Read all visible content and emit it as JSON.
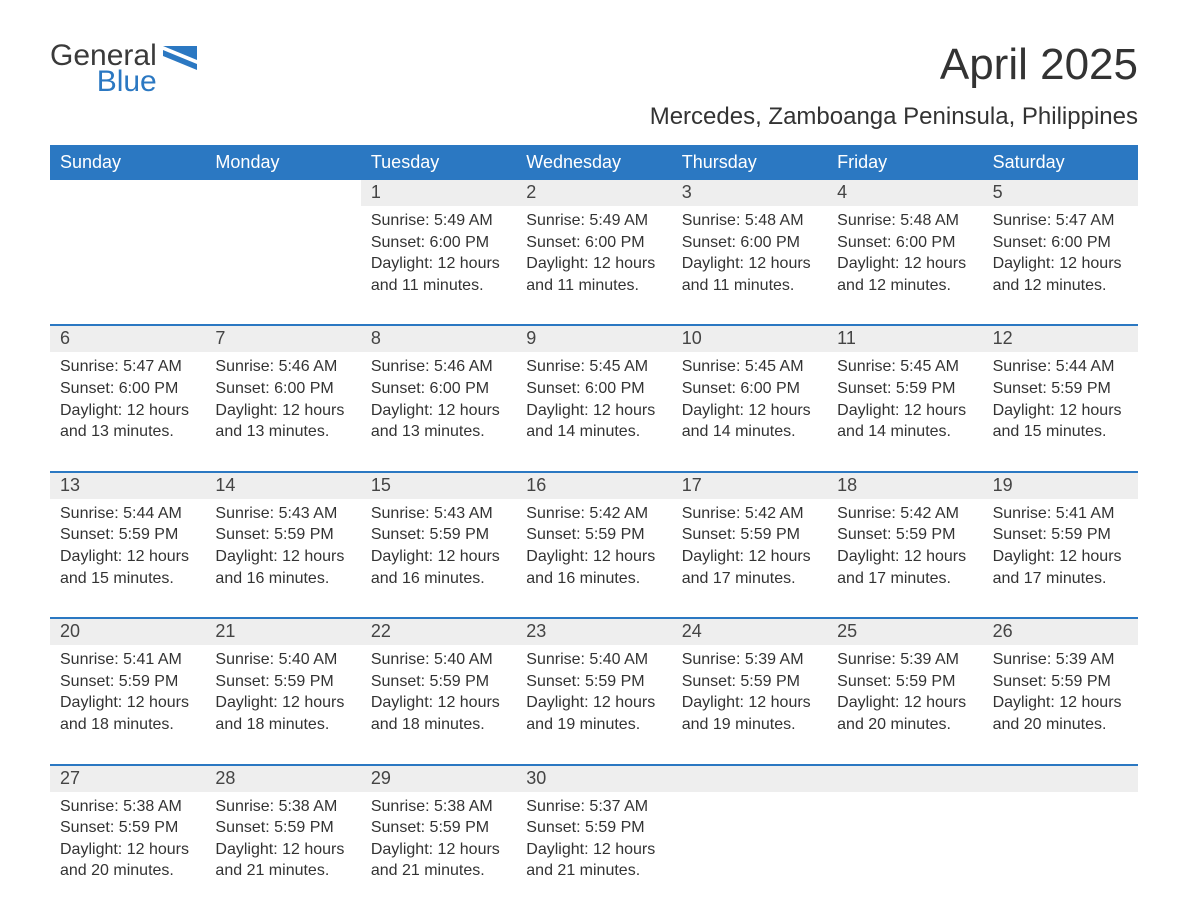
{
  "logo": {
    "line1": "General",
    "line2": "Blue",
    "flag_color": "#2b78c2"
  },
  "title": "April 2025",
  "subtitle": "Mercedes, Zamboanga Peninsula, Philippines",
  "colors": {
    "header_bg": "#2b78c2",
    "header_text": "#ffffff",
    "daynum_bg": "#eeeeee",
    "text": "#333333",
    "week_border": "#2b78c2",
    "background": "#ffffff"
  },
  "weekdays": [
    "Sunday",
    "Monday",
    "Tuesday",
    "Wednesday",
    "Thursday",
    "Friday",
    "Saturday"
  ],
  "weeks": [
    [
      null,
      null,
      {
        "n": "1",
        "sr": "5:49 AM",
        "ss": "6:00 PM",
        "dl": "12 hours and 11 minutes."
      },
      {
        "n": "2",
        "sr": "5:49 AM",
        "ss": "6:00 PM",
        "dl": "12 hours and 11 minutes."
      },
      {
        "n": "3",
        "sr": "5:48 AM",
        "ss": "6:00 PM",
        "dl": "12 hours and 11 minutes."
      },
      {
        "n": "4",
        "sr": "5:48 AM",
        "ss": "6:00 PM",
        "dl": "12 hours and 12 minutes."
      },
      {
        "n": "5",
        "sr": "5:47 AM",
        "ss": "6:00 PM",
        "dl": "12 hours and 12 minutes."
      }
    ],
    [
      {
        "n": "6",
        "sr": "5:47 AM",
        "ss": "6:00 PM",
        "dl": "12 hours and 13 minutes."
      },
      {
        "n": "7",
        "sr": "5:46 AM",
        "ss": "6:00 PM",
        "dl": "12 hours and 13 minutes."
      },
      {
        "n": "8",
        "sr": "5:46 AM",
        "ss": "6:00 PM",
        "dl": "12 hours and 13 minutes."
      },
      {
        "n": "9",
        "sr": "5:45 AM",
        "ss": "6:00 PM",
        "dl": "12 hours and 14 minutes."
      },
      {
        "n": "10",
        "sr": "5:45 AM",
        "ss": "6:00 PM",
        "dl": "12 hours and 14 minutes."
      },
      {
        "n": "11",
        "sr": "5:45 AM",
        "ss": "5:59 PM",
        "dl": "12 hours and 14 minutes."
      },
      {
        "n": "12",
        "sr": "5:44 AM",
        "ss": "5:59 PM",
        "dl": "12 hours and 15 minutes."
      }
    ],
    [
      {
        "n": "13",
        "sr": "5:44 AM",
        "ss": "5:59 PM",
        "dl": "12 hours and 15 minutes."
      },
      {
        "n": "14",
        "sr": "5:43 AM",
        "ss": "5:59 PM",
        "dl": "12 hours and 16 minutes."
      },
      {
        "n": "15",
        "sr": "5:43 AM",
        "ss": "5:59 PM",
        "dl": "12 hours and 16 minutes."
      },
      {
        "n": "16",
        "sr": "5:42 AM",
        "ss": "5:59 PM",
        "dl": "12 hours and 16 minutes."
      },
      {
        "n": "17",
        "sr": "5:42 AM",
        "ss": "5:59 PM",
        "dl": "12 hours and 17 minutes."
      },
      {
        "n": "18",
        "sr": "5:42 AM",
        "ss": "5:59 PM",
        "dl": "12 hours and 17 minutes."
      },
      {
        "n": "19",
        "sr": "5:41 AM",
        "ss": "5:59 PM",
        "dl": "12 hours and 17 minutes."
      }
    ],
    [
      {
        "n": "20",
        "sr": "5:41 AM",
        "ss": "5:59 PM",
        "dl": "12 hours and 18 minutes."
      },
      {
        "n": "21",
        "sr": "5:40 AM",
        "ss": "5:59 PM",
        "dl": "12 hours and 18 minutes."
      },
      {
        "n": "22",
        "sr": "5:40 AM",
        "ss": "5:59 PM",
        "dl": "12 hours and 18 minutes."
      },
      {
        "n": "23",
        "sr": "5:40 AM",
        "ss": "5:59 PM",
        "dl": "12 hours and 19 minutes."
      },
      {
        "n": "24",
        "sr": "5:39 AM",
        "ss": "5:59 PM",
        "dl": "12 hours and 19 minutes."
      },
      {
        "n": "25",
        "sr": "5:39 AM",
        "ss": "5:59 PM",
        "dl": "12 hours and 20 minutes."
      },
      {
        "n": "26",
        "sr": "5:39 AM",
        "ss": "5:59 PM",
        "dl": "12 hours and 20 minutes."
      }
    ],
    [
      {
        "n": "27",
        "sr": "5:38 AM",
        "ss": "5:59 PM",
        "dl": "12 hours and 20 minutes."
      },
      {
        "n": "28",
        "sr": "5:38 AM",
        "ss": "5:59 PM",
        "dl": "12 hours and 21 minutes."
      },
      {
        "n": "29",
        "sr": "5:38 AM",
        "ss": "5:59 PM",
        "dl": "12 hours and 21 minutes."
      },
      {
        "n": "30",
        "sr": "5:37 AM",
        "ss": "5:59 PM",
        "dl": "12 hours and 21 minutes."
      },
      null,
      null,
      null
    ]
  ],
  "labels": {
    "sunrise": "Sunrise:",
    "sunset": "Sunset:",
    "daylight": "Daylight:"
  }
}
